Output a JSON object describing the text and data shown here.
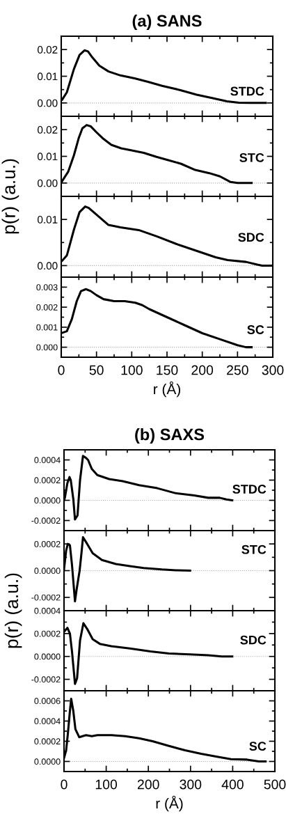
{
  "chart_data": [
    {
      "type": "line",
      "title": "(a) SANS",
      "tick_labels": "y",
      "xlim": [
        0,
        300
      ],
      "xticks": [
        0,
        {
          "value": 25,
          "label": null
        },
        50,
        {
          "value": 75,
          "label": null
        },
        100,
        {
          "value": 125,
          "label": null
        },
        150,
        {
          "value": 175,
          "label": null
        },
        200,
        {
          "value": 225,
          "label": null
        },
        250,
        {
          "value": 275,
          "label": null
        },
        300
      ],
      "ylim": [
        -0.005,
        0.025
      ],
      "yticks": [
        {
          "value": 0,
          "label": "0.00"
        },
        {
          "value": 0.005,
          "label": null
        },
        {
          "value": 0.01,
          "label": "0.01"
        },
        {
          "value": 0.015,
          "label": null
        },
        {
          "value": 0.02,
          "label": "0.02"
        }
      ],
      "ref_lines": [
        {
          "axis": "y",
          "value": 0,
          "color": "#aaaaaa",
          "line_style": "dotted"
        }
      ],
      "series": [
        {
          "name": "STDC",
          "color": "#000000",
          "x": [
            0,
            1,
            8,
            18,
            26,
            33,
            38,
            44,
            54,
            67,
            84,
            104,
            123,
            143,
            169,
            192,
            215,
            235,
            252,
            268,
            290
          ],
          "values": [
            0.001,
            0.0011,
            0.004,
            0.0127,
            0.018,
            0.0197,
            0.0193,
            0.0171,
            0.014,
            0.0118,
            0.0103,
            0.0092,
            0.0079,
            0.0064,
            0.0048,
            0.0031,
            0.0018,
            0.0006,
            0.0001,
            0,
            0
          ]
        }
      ]
    },
    {
      "type": "line",
      "ylabel": "p(r) (a.u.)",
      "tick_labels": "y",
      "xlim": [
        0,
        300
      ],
      "xticks": [
        0,
        {
          "value": 25,
          "label": null
        },
        50,
        {
          "value": 75,
          "label": null
        },
        100,
        {
          "value": 125,
          "label": null
        },
        150,
        {
          "value": 175,
          "label": null
        },
        200,
        {
          "value": 225,
          "label": null
        },
        250,
        {
          "value": 275,
          "label": null
        },
        300
      ],
      "ylim": [
        -0.005,
        0.025
      ],
      "yticks": [
        {
          "value": 0,
          "label": "0.00"
        },
        {
          "value": 0.005,
          "label": null
        },
        {
          "value": 0.01,
          "label": "0.01"
        },
        {
          "value": 0.015,
          "label": null
        },
        {
          "value": 0.02,
          "label": "0.02"
        }
      ],
      "ref_lines": [
        {
          "axis": "y",
          "value": 0,
          "color": "#aaaaaa",
          "line_style": "dotted"
        }
      ],
      "series": [
        {
          "name": "STC",
          "color": "#000000",
          "x": [
            0,
            10,
            18,
            25,
            30,
            36,
            42,
            50,
            60,
            71,
            85,
            100,
            117,
            135,
            150,
            170,
            190,
            210,
            225,
            240,
            250,
            270
          ],
          "values": [
            0.0002,
            0.0043,
            0.0104,
            0.017,
            0.0205,
            0.0217,
            0.0212,
            0.019,
            0.0165,
            0.0143,
            0.013,
            0.0122,
            0.0113,
            0.0098,
            0.0087,
            0.0072,
            0.0049,
            0.0037,
            0.0025,
            0.0004,
            0,
            0
          ]
        }
      ]
    },
    {
      "type": "line",
      "tick_labels": "y",
      "xlim": [
        0,
        300
      ],
      "xticks": [
        0,
        {
          "value": 25,
          "label": null
        },
        50,
        {
          "value": 75,
          "label": null
        },
        100,
        {
          "value": 125,
          "label": null
        },
        150,
        {
          "value": 175,
          "label": null
        },
        200,
        {
          "value": 225,
          "label": null
        },
        250,
        {
          "value": 275,
          "label": null
        },
        300
      ],
      "ylim": [
        -0.0025,
        0.015
      ],
      "yticks": [
        {
          "value": 0,
          "label": "0.00"
        },
        {
          "value": 0.005,
          "label": null
        },
        {
          "value": 0.01,
          "label": "0.01"
        }
      ],
      "ref_lines": [
        {
          "axis": "y",
          "value": 0,
          "color": "#aaaaaa",
          "line_style": "dotted"
        }
      ],
      "series": [
        {
          "name": "SDC",
          "color": "#000000",
          "x": [
            0,
            1,
            8,
            18,
            26,
            34,
            39,
            51,
            67,
            84,
            110,
            136,
            163,
            192,
            219,
            236,
            262,
            278,
            285,
            300
          ],
          "values": [
            0.001,
            0.001,
            0.0022,
            0.0078,
            0.0116,
            0.0128,
            0.0125,
            0.0109,
            0.0088,
            0.0083,
            0.0077,
            0.0063,
            0.0047,
            0.0032,
            0.0018,
            0.0012,
            0.0008,
            0.0002,
            0,
            0
          ]
        }
      ]
    },
    {
      "type": "line",
      "xlabel": "r (Å)",
      "xlim": [
        0,
        300
      ],
      "xticks": [
        0,
        {
          "value": 25,
          "label": null
        },
        50,
        {
          "value": 75,
          "label": null
        },
        100,
        {
          "value": 125,
          "label": null
        },
        150,
        {
          "value": 175,
          "label": null
        },
        200,
        {
          "value": 225,
          "label": null
        },
        250,
        {
          "value": 275,
          "label": null
        },
        300
      ],
      "ylim": [
        -0.0005,
        0.0035
      ],
      "yticks": [
        {
          "value": 0,
          "label": "0.000"
        },
        {
          "value": 0.0005,
          "label": null
        },
        {
          "value": 0.001,
          "label": "0.001"
        },
        {
          "value": 0.0015,
          "label": null
        },
        {
          "value": 0.002,
          "label": "0.002"
        },
        {
          "value": 0.0025,
          "label": null
        },
        {
          "value": 0.003,
          "label": "0.003"
        }
      ],
      "ref_lines": [
        {
          "axis": "y",
          "value": 0,
          "color": "#aaaaaa",
          "line_style": "dotted"
        }
      ],
      "series": [
        {
          "name": "SC",
          "color": "#000000",
          "x": [
            0,
            8,
            15,
            22,
            28,
            35,
            42,
            50,
            60,
            75,
            90,
            105,
            115,
            125,
            150,
            175,
            200,
            225,
            250,
            262,
            270
          ],
          "values": [
            0.0007,
            0.0008,
            0.0014,
            0.0023,
            0.0028,
            0.0029,
            0.0028,
            0.0026,
            0.0024,
            0.0023,
            0.0023,
            0.00222,
            0.0021,
            0.0019,
            0.0015,
            0.0011,
            0.0007,
            0.0004,
            0.0001,
            0,
            0
          ]
        }
      ]
    },
    {
      "type": "line",
      "title": "(b) SAXS",
      "tick_labels": "y",
      "xlim": [
        0,
        500
      ],
      "xticks": [
        0,
        {
          "value": 50,
          "label": null
        },
        100,
        {
          "value": 150,
          "label": null
        },
        200,
        {
          "value": 250,
          "label": null
        },
        300,
        {
          "value": 350,
          "label": null
        },
        400,
        {
          "value": 450,
          "label": null
        },
        500
      ],
      "ylim": [
        -0.0003,
        0.0005
      ],
      "yticks": [
        {
          "value": -0.0002,
          "label": "-0.0002"
        },
        {
          "value": -0.0001,
          "label": null
        },
        {
          "value": 0,
          "label": "0.0000"
        },
        {
          "value": 0.0001,
          "label": null
        },
        {
          "value": 0.0002,
          "label": "0.0002"
        },
        {
          "value": 0.0003,
          "label": null
        },
        {
          "value": 0.0004,
          "label": "0.0004"
        }
      ],
      "ref_lines": [
        {
          "axis": "y",
          "value": 0,
          "color": "#aaaaaa",
          "line_style": "dotted"
        }
      ],
      "series": [
        {
          "name": "STDC",
          "color": "#000000",
          "x": [
            0,
            2,
            8,
            13,
            16,
            22,
            26,
            32,
            38,
            45,
            52,
            57,
            66,
            79,
            107,
            139,
            178,
            221,
            265,
            309,
            342,
            369,
            385,
            399
          ],
          "values": [
            0,
            2.5e-05,
            0.00017,
            0.00023,
            0.0002,
            1.4e-05,
            -0.00019,
            -0.00015,
            0.0002,
            0.00044,
            0.00042,
            0.0004,
            0.00031,
            0.00025,
            0.00021,
            0.00019,
            0.00015,
            0.00012,
            7e-05,
            4.8e-05,
            2.5e-05,
            2.5e-05,
            9e-06,
            0
          ]
        }
      ]
    },
    {
      "type": "line",
      "ylabel": "p(r) (a.u.)",
      "tick_labels": "y",
      "xlim": [
        0,
        500
      ],
      "xticks": [
        0,
        {
          "value": 50,
          "label": null
        },
        100,
        {
          "value": 150,
          "label": null
        },
        200,
        {
          "value": 250,
          "label": null
        },
        300,
        {
          "value": 350,
          "label": null
        },
        400,
        {
          "value": 450,
          "label": null
        },
        500
      ],
      "ylim": [
        -0.0003,
        0.0003
      ],
      "yticks": [
        {
          "value": -0.0002,
          "label": "-0.0002"
        },
        {
          "value": -0.0001,
          "label": null
        },
        {
          "value": 0,
          "label": "0.0000"
        },
        {
          "value": 0.0001,
          "label": null
        },
        {
          "value": 0.0002,
          "label": "0.0002"
        }
      ],
      "ref_lines": [
        {
          "axis": "y",
          "value": 0,
          "color": "#aaaaaa",
          "line_style": "dotted"
        }
      ],
      "series": [
        {
          "name": "STC",
          "color": "#000000",
          "x": [
            0,
            5,
            9,
            14,
            19,
            26,
            30,
            37,
            41,
            45,
            55,
            68,
            90,
            123,
            156,
            189,
            232,
            265,
            299
          ],
          "values": [
            1e-05,
            0.00015,
            0.0002,
            0.00019,
            4e-05,
            -0.00023,
            -0.00014,
            0,
            0.00012,
            0.00025,
            0.0002,
            0.00013,
            8e-05,
            5e-05,
            3.4e-05,
            2e-05,
            9e-06,
            3e-06,
            0
          ]
        }
      ]
    },
    {
      "type": "line",
      "tick_labels": "y",
      "xlim": [
        0,
        500
      ],
      "xticks": [
        0,
        {
          "value": 50,
          "label": null
        },
        100,
        {
          "value": 150,
          "label": null
        },
        200,
        {
          "value": 250,
          "label": null
        },
        300,
        {
          "value": 350,
          "label": null
        },
        400,
        {
          "value": 450,
          "label": null
        },
        500
      ],
      "ylim": [
        -0.0003,
        0.0004
      ],
      "yticks": [
        {
          "value": -0.0002,
          "label": "-0.0002"
        },
        {
          "value": -0.0001,
          "label": null
        },
        {
          "value": 0,
          "label": "0.0000"
        },
        {
          "value": 0.0001,
          "label": null
        },
        {
          "value": 0.0002,
          "label": "0.0002"
        },
        {
          "value": 0.0003,
          "label": null
        },
        {
          "value": 0.0004,
          "label": "0.0004"
        }
      ],
      "ref_lines": [
        {
          "axis": "y",
          "value": 0,
          "color": "#aaaaaa",
          "line_style": "dotted"
        }
      ],
      "series": [
        {
          "name": "SDC",
          "color": "#000000",
          "x": [
            1,
            8,
            14,
            19,
            26,
            31,
            38,
            46,
            55,
            68,
            85,
            112,
            156,
            205,
            249,
            298,
            342,
            374,
            399
          ],
          "values": [
            0.00022,
            0.00025,
            0.0002,
            4e-05,
            -0.00024,
            -0.00019,
            0.00014,
            0.00029,
            0.00024,
            0.00015,
            0.00011,
            9e-05,
            7e-05,
            4.4e-05,
            2.6e-05,
            1.8e-05,
            1e-05,
            0,
            0
          ]
        }
      ]
    },
    {
      "type": "line",
      "xlabel": "r (Å)",
      "xlim": [
        0,
        500
      ],
      "xticks": [
        0,
        {
          "value": 50,
          "label": null
        },
        100,
        {
          "value": 150,
          "label": null
        },
        200,
        {
          "value": 250,
          "label": null
        },
        300,
        {
          "value": 350,
          "label": null
        },
        400,
        {
          "value": 450,
          "label": null
        },
        500
      ],
      "ylim": [
        -0.0001,
        0.0007
      ],
      "yticks": [
        {
          "value": 0,
          "label": "0.0000"
        },
        {
          "value": 0.0001,
          "label": null
        },
        {
          "value": 0.0002,
          "label": "0.0002"
        },
        {
          "value": 0.0003,
          "label": null
        },
        {
          "value": 0.0004,
          "label": "0.0004"
        },
        {
          "value": 0.0005,
          "label": null
        },
        {
          "value": 0.0006,
          "label": "0.0006"
        }
      ],
      "ref_lines": [
        {
          "axis": "y",
          "value": 0,
          "color": "#aaaaaa",
          "line_style": "dotted"
        }
      ],
      "series": [
        {
          "name": "SC",
          "color": "#000000",
          "x": [
            0.5,
            5,
            9,
            14,
            17,
            22,
            27,
            36,
            44,
            52,
            66,
            79,
            112,
            145,
            178,
            210,
            243,
            287,
            325,
            363,
            396,
            434,
            462,
            478
          ],
          "values": [
            4e-05,
            0.00011,
            0.00027,
            0.0005,
            0.00062,
            0.0005,
            0.00032,
            0.00024,
            0.00025,
            0.00026,
            0.00025,
            0.00026,
            0.00026,
            0.00025,
            0.00023,
            0.0002,
            0.00016,
            0.00011,
            7.6e-05,
            4.6e-05,
            2.3e-05,
            1.8e-05,
            0,
            0
          ]
        }
      ]
    }
  ]
}
